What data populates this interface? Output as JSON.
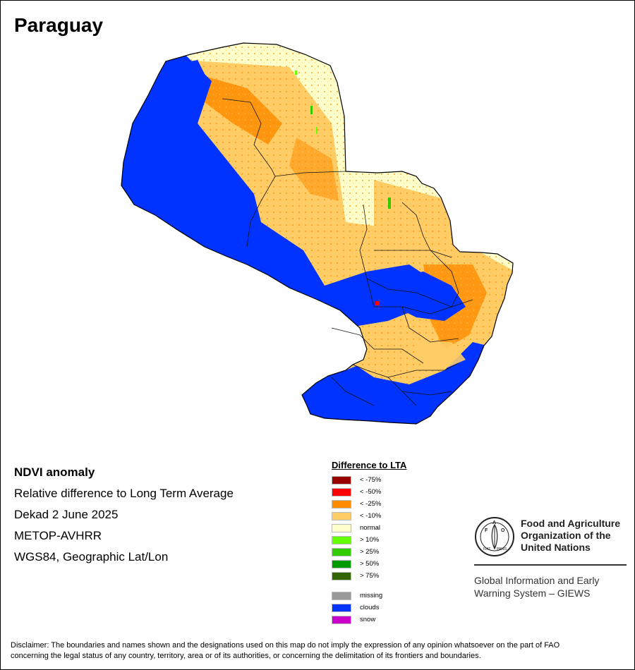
{
  "title": "Paraguay",
  "info": {
    "heading": "NDVI anomaly",
    "line1": "Relative difference to Long Term Average",
    "line2": "Dekad 2 June 2025",
    "line3": "METOP-AVHRR",
    "line4": "WGS84, Geographic Lat/Lon"
  },
  "legend": {
    "title": "Difference to LTA",
    "items": [
      {
        "label": "< -75%",
        "color": "#990000"
      },
      {
        "label": "< -50%",
        "color": "#ff0000"
      },
      {
        "label": "< -25%",
        "color": "#ff8c00"
      },
      {
        "label": "< -10%",
        "color": "#ffcc66"
      },
      {
        "label": "normal",
        "color": "#ffffcc"
      },
      {
        "label": "> 10%",
        "color": "#66ff00"
      },
      {
        "label": "> 25%",
        "color": "#33cc00"
      },
      {
        "label": "> 50%",
        "color": "#009900"
      },
      {
        "label": "> 75%",
        "color": "#336600"
      }
    ],
    "extra": [
      {
        "label": "missing",
        "color": "#999999"
      },
      {
        "label": "clouds",
        "color": "#0033ff"
      },
      {
        "label": "snow",
        "color": "#cc00cc"
      }
    ]
  },
  "fao": {
    "line1": "Food and Agriculture",
    "line2": "Organization of the",
    "line3": "United Nations",
    "giews1": "Global Information and Early",
    "giews2": "Warning System – GIEWS",
    "logo_text": "FAO FIAT PANIS"
  },
  "disclaimer": {
    "line1": "Disclaimer: The boundaries and names shown and the designations used on this map do not imply the expression of any opinion whatsoever on the part of FAO",
    "line2": "concerning the legal status of any country, territory, area or of its authorities, or concerning the delimitation of its frontiers and boundaries."
  }
}
